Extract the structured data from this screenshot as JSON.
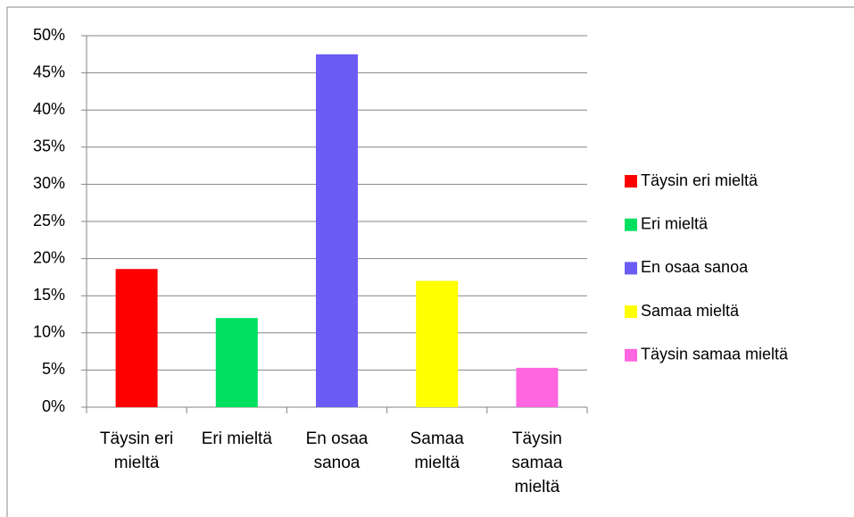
{
  "chart_data": {
    "type": "bar",
    "categories": [
      "Täysin eri mieltä",
      "Eri mieltä",
      "En osaa sanoa",
      "Samaa mieltä",
      "Täysin samaa mieltä"
    ],
    "values": [
      18.6,
      12,
      47.5,
      17,
      5.3
    ],
    "colors": [
      "#ff0000",
      "#00e060",
      "#6b5cf5",
      "#ffff00",
      "#ff66e0"
    ],
    "ylim": [
      0,
      50
    ],
    "yticks": [
      {
        "value": 0,
        "label": "0%"
      },
      {
        "value": 5,
        "label": "5%"
      },
      {
        "value": 10,
        "label": "10%"
      },
      {
        "value": 15,
        "label": "15%"
      },
      {
        "value": 20,
        "label": "20%"
      },
      {
        "value": 25,
        "label": "25%"
      },
      {
        "value": 30,
        "label": "30%"
      },
      {
        "value": 35,
        "label": "35%"
      },
      {
        "value": 40,
        "label": "40%"
      },
      {
        "value": 45,
        "label": "45%"
      },
      {
        "value": 50,
        "label": "50%"
      }
    ],
    "grid": true,
    "legend": "right"
  }
}
